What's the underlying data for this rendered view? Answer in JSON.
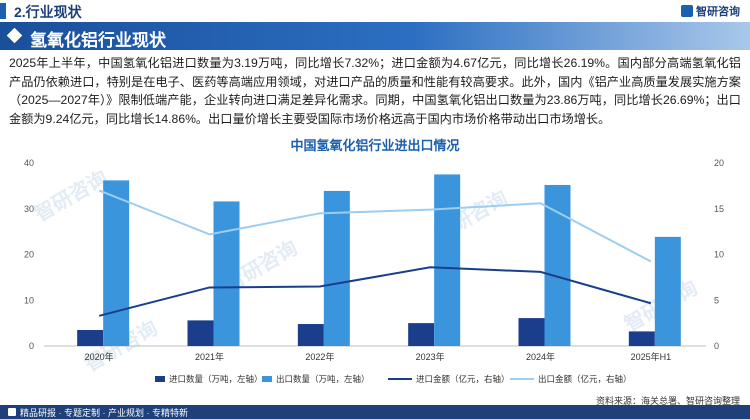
{
  "header": {
    "section_title": "2.行业现状",
    "logo_text": "智研咨询"
  },
  "banner": {
    "title": "氢氧化铝行业现状"
  },
  "paragraph": "2025年上半年，中国氢氧化铝进口数量为3.19万吨，同比增长7.32%；进口金额为4.67亿元，同比增长26.19%。国内部分高端氢氧化铝产品仍依赖进口，特别是在电子、医药等高端应用领域，对进口产品的质量和性能有较高要求。此外，国内《铝产业高质量发展实施方案（2025—2027年）》限制低端产能，企业转向进口满足差异化需求。同期，中国氢氧化铝出口数量为23.86万吨，同比增长26.69%；出口金额为9.24亿元，同比增长14.86%。出口量价增长主要受国际市场价格远高于国内市场价格带动出口市场增长。",
  "watermark": "智研咨询",
  "chart_data": {
    "type": "bar",
    "title": "中国氢氧化铝行业进出口情况",
    "categories": [
      "2020年",
      "2021年",
      "2022年",
      "2023年",
      "2024年",
      "2025年H1"
    ],
    "left_ylim": [
      0,
      40
    ],
    "left_ticks": [
      "0",
      "10",
      "20",
      "30",
      "40"
    ],
    "right_ylim": [
      0,
      20
    ],
    "right_ticks": [
      "0",
      "5",
      "10",
      "15",
      "20"
    ],
    "grid": false,
    "legend_position": "bottom",
    "series": [
      {
        "name": "进口数量（万吨，左轴）",
        "kind": "bar",
        "axis": "left",
        "color": "#1a3e8c",
        "values": [
          3.5,
          5.6,
          4.8,
          5.0,
          6.1,
          3.19
        ]
      },
      {
        "name": "出口数量（万吨，左轴）",
        "kind": "bar",
        "axis": "left",
        "color": "#3a95dc",
        "values": [
          36.2,
          31.6,
          33.9,
          37.5,
          35.2,
          23.86
        ]
      },
      {
        "name": "进口金额（亿元，右轴）",
        "kind": "line",
        "axis": "right",
        "color": "#1a3e8c",
        "values": [
          3.3,
          6.4,
          6.5,
          8.6,
          8.1,
          4.67
        ]
      },
      {
        "name": "出口金额（亿元，右轴）",
        "kind": "line",
        "axis": "right",
        "color": "#9dcdf0",
        "values": [
          17.0,
          12.2,
          14.5,
          14.9,
          15.6,
          9.24
        ]
      }
    ]
  },
  "source": "资料来源：海关总署、智研咨询整理",
  "footer": {
    "text": "精品研报 · 专题定制 · 产业规划 · 专精特新"
  }
}
